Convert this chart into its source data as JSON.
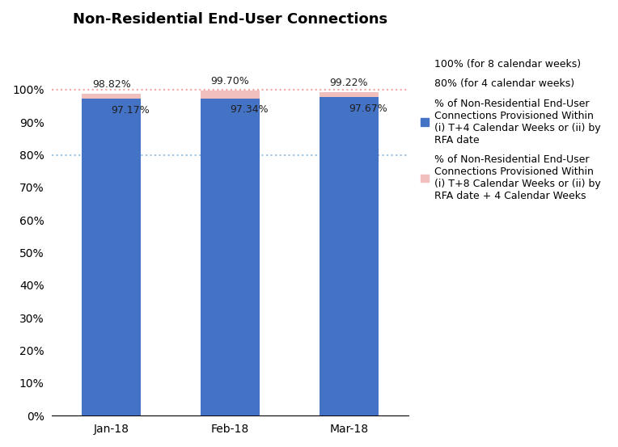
{
  "title": "Non-Residential End-User Connections",
  "categories": [
    "Jan-18",
    "Feb-18",
    "Mar-18"
  ],
  "values_4wk": [
    97.17,
    97.34,
    97.67
  ],
  "values_8wk_extra": [
    1.65,
    2.36,
    1.55
  ],
  "labels_4wk": [
    "97.17%",
    "97.34%",
    "97.67%"
  ],
  "labels_total": [
    "98.82%",
    "99.70%",
    "99.22%"
  ],
  "color_4wk": "#4472C4",
  "color_8wk": "#F2BFBF",
  "ref_line_100_color": "#F4A6A6",
  "ref_line_80_color": "#9DC3E6",
  "ylim": [
    0,
    110
  ],
  "yticks": [
    0,
    10,
    20,
    30,
    40,
    50,
    60,
    70,
    80,
    90,
    100
  ],
  "ytick_labels": [
    "0%",
    "10%",
    "20%",
    "30%",
    "40%",
    "50%",
    "60%",
    "70%",
    "80%",
    "90%",
    "100%"
  ],
  "legend_label_4wk": "% of Non-Residential End-User\nConnections Provisioned Within\n(i) T+4 Calendar Weeks or (ii) by\nRFA date",
  "legend_label_8wk": "% of Non-Residential End-User\nConnections Provisioned Within\n(i) T+8 Calendar Weeks or (ii) by\nRFA date + 4 Calendar Weeks",
  "ref_100_label": "100% (for 8 calendar weeks)",
  "ref_80_label": "80% (for 4 calendar weeks)",
  "bar_width": 0.5,
  "background_color": "#FFFFFF",
  "label_4wk_color": "#1F1F1F",
  "label_total_color": "#1F1F1F"
}
